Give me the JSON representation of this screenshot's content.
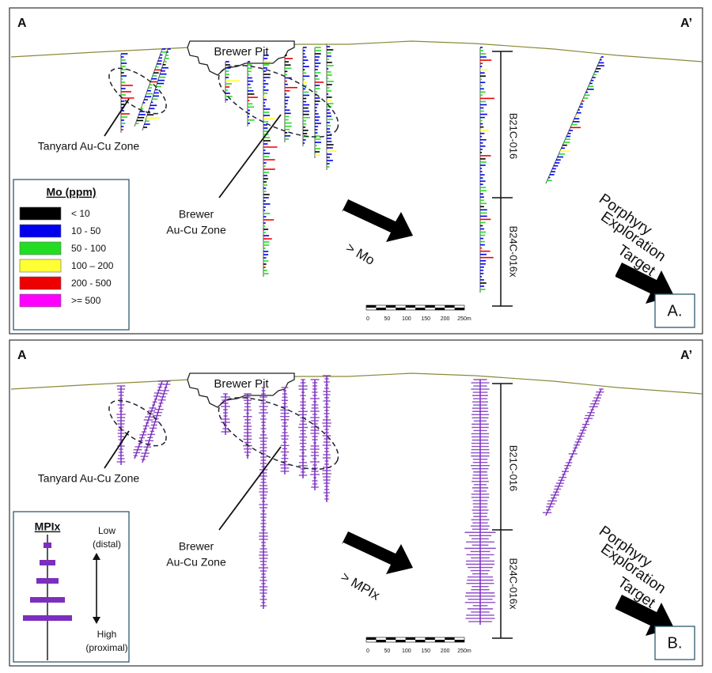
{
  "panels": [
    {
      "corner_left": "A",
      "corner_right": "A’",
      "pit": "Brewer Pit",
      "tanyard": "Tanyard Au-Cu Zone",
      "brewer": [
        "Brewer",
        "Au-Cu Zone"
      ],
      "holes": [
        "B21C-016",
        "B24C-016x"
      ],
      "arrow_label": "> Mo",
      "target": [
        "Porphyry",
        "Exploration",
        "Target"
      ],
      "panel_label": "A.",
      "scale": [
        "0",
        "50",
        "100",
        "150",
        "200",
        "250m"
      ],
      "legend": {
        "title": "Mo (ppm)",
        "items": [
          {
            "label": "< 10",
            "color": "#000000"
          },
          {
            "label": "10 - 50",
            "color": "#0000ee"
          },
          {
            "label": "50 - 100",
            "color": "#22dd22"
          },
          {
            "label": "100 – 200",
            "color": "#ffff33"
          },
          {
            "label": "200 - 500",
            "color": "#ee0000"
          },
          {
            "label": ">= 500",
            "color": "#ff00ff"
          }
        ]
      }
    },
    {
      "corner_left": "A",
      "corner_right": "A’",
      "pit": "Brewer Pit",
      "tanyard": "Tanyard Au-Cu Zone",
      "brewer": [
        "Brewer",
        "Au-Cu Zone"
      ],
      "holes": [
        "B21C-016",
        "B24C-016x"
      ],
      "arrow_label": "> MPIx",
      "target": [
        "Porphyry",
        "Exploration",
        "Target"
      ],
      "panel_label": "B.",
      "scale": [
        "0",
        "50",
        "100",
        "150",
        "200",
        "250m"
      ],
      "legend": {
        "title": "MPIx",
        "low": [
          "Low",
          "(distal)"
        ],
        "high": [
          "High",
          "(proximal)"
        ],
        "color": "#7b2fbe"
      }
    }
  ]
}
